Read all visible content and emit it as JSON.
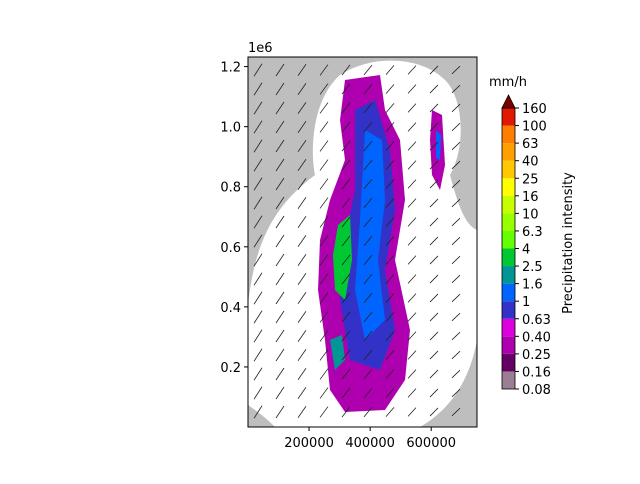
{
  "chart_data": {
    "type": "map",
    "x_ticks_axis": "x",
    "xlim": [
      0,
      750000
    ],
    "ylim": [
      0,
      1232000
    ],
    "xticks": [
      200000,
      400000,
      600000
    ],
    "yticks": [
      {
        "value": 200000,
        "label": "0.2"
      },
      {
        "value": 400000,
        "label": "0.4"
      },
      {
        "value": 600000,
        "label": "0.6"
      },
      {
        "value": 800000,
        "label": "0.8"
      },
      {
        "value": 1000000,
        "label": "1.0"
      },
      {
        "value": 1200000,
        "label": "1.2"
      }
    ],
    "y_offset_label": "1e6",
    "colorbar": {
      "unit_label": "mm/h",
      "label": "Precipitation intensity",
      "levels": [
        0.08,
        0.16,
        0.25,
        {
          "value": 0.4,
          "label": "0.40"
        },
        0.63,
        1,
        1.6,
        2.5,
        4,
        6.3,
        10,
        16,
        25,
        40,
        63,
        100,
        160
      ],
      "colors": [
        "#9c7e94",
        "#640064",
        "#af00af",
        "#dc00dc",
        "#3232c8",
        "#0064ff",
        "#009696",
        "#00c832",
        "#64ff00",
        "#96ff00",
        "#c8ff00",
        "#ffff00",
        "#ffc800",
        "#ffa000",
        "#ff7d00",
        "#e11900"
      ],
      "extend_color": "#7a0000"
    }
  }
}
